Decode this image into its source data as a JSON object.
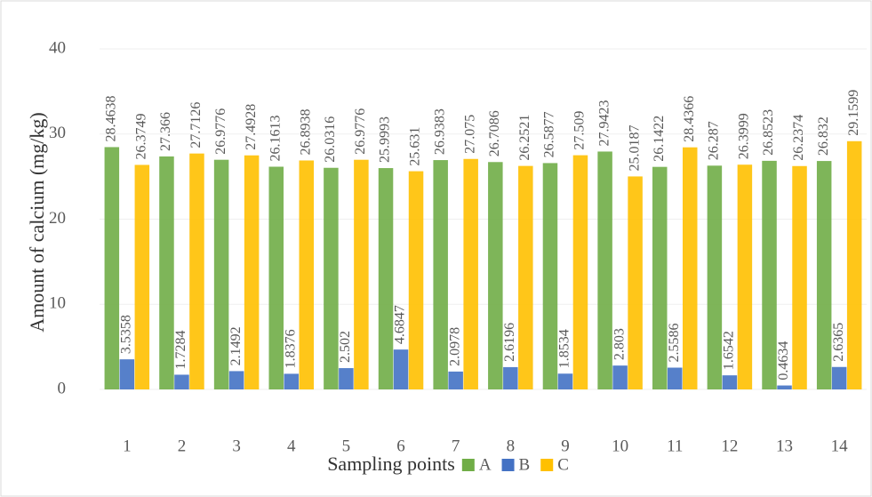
{
  "chart_data": {
    "type": "bar",
    "x_label": "Sampling points",
    "y_label": "Amount of calcium (mg/kg)",
    "categories": [
      "1",
      "2",
      "3",
      "4",
      "5",
      "6",
      "7",
      "8",
      "9",
      "10",
      "11",
      "12",
      "13",
      "14"
    ],
    "series": [
      {
        "name": "A",
        "color": "#70ad47",
        "values": [
          28.4638,
          27.366,
          26.9776,
          26.1613,
          26.0316,
          25.9993,
          26.9383,
          26.7086,
          26.5877,
          27.9423,
          26.1422,
          26.287,
          26.8523,
          26.832
        ]
      },
      {
        "name": "B",
        "color": "#4472c4",
        "values": [
          3.5358,
          1.7284,
          2.1492,
          1.8376,
          2.502,
          4.6847,
          2.0978,
          2.6196,
          1.8534,
          2.803,
          2.5586,
          1.6542,
          0.4634,
          2.6365
        ]
      },
      {
        "name": "C",
        "color": "#ffc000",
        "values": [
          26.3749,
          27.7126,
          27.4928,
          26.8938,
          26.9776,
          25.631,
          27.075,
          26.2521,
          27.509,
          25.0187,
          28.4366,
          26.3999,
          26.2374,
          29.1599
        ]
      }
    ],
    "ylim": [
      0,
      40
    ],
    "yticks": [
      0,
      10,
      20,
      30,
      40
    ],
    "grid": true,
    "legend": "bottom"
  }
}
